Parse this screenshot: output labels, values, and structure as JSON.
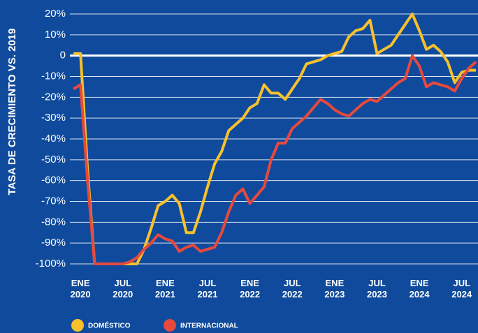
{
  "chart_data": {
    "type": "line",
    "y_label": "TASA DE CRECIMIENTO VS. 2019",
    "x": [
      -1,
      0,
      1,
      2,
      3,
      4,
      5,
      6,
      7,
      8,
      9,
      10,
      11,
      12,
      13,
      14,
      15,
      16,
      17,
      18,
      19,
      20,
      21,
      22,
      23,
      24,
      25,
      26,
      27,
      28,
      29,
      30,
      31,
      32,
      33,
      34,
      35,
      36,
      37,
      38,
      39,
      40,
      41,
      42,
      43,
      44,
      45,
      46,
      47,
      48,
      49,
      50,
      51,
      52,
      53,
      54,
      55,
      56
    ],
    "series": [
      {
        "name": "DOMÉSTICO",
        "color": "#f7c12b",
        "values": [
          1,
          1,
          -55,
          -100,
          -100,
          -100,
          -100,
          -100,
          -100,
          -100,
          -93,
          -83,
          -72,
          -70,
          -67,
          -71,
          -85,
          -85,
          -75,
          -63,
          -52,
          -46,
          -36,
          -33,
          -30,
          -25,
          -23,
          -14,
          -18,
          -18,
          -21,
          -16,
          -11,
          -4,
          -3,
          -2,
          0,
          1,
          2,
          9,
          12,
          13,
          17,
          1,
          3,
          5,
          10,
          15,
          20,
          12,
          3,
          5,
          2,
          -3,
          -13,
          -8,
          -7,
          -7
        ]
      },
      {
        "name": "INTERNACIONAL",
        "color": "#e6493d",
        "values": [
          -16,
          -14,
          -60,
          -100,
          -100,
          -100,
          -100,
          -100,
          -99,
          -97,
          -93,
          -90,
          -86,
          -88,
          -89,
          -94,
          -92,
          -91,
          -94,
          -93,
          -92,
          -85,
          -75,
          -67,
          -64,
          -71,
          -67,
          -63,
          -50,
          -42,
          -42,
          -35,
          -32,
          -29,
          -25,
          -21,
          -23,
          -26,
          -28,
          -29,
          -26,
          -23,
          -21,
          -22,
          -19,
          -16,
          -13,
          -11,
          0,
          -5,
          -15,
          -13,
          -14,
          -15,
          -17,
          -11,
          -6,
          -3
        ]
      }
    ],
    "xlim": [
      -1.5,
      56.3
    ],
    "xticks": [
      {
        "value": 0,
        "label": "ENE 2020"
      },
      {
        "value": 6,
        "label": "JUL 2020"
      },
      {
        "value": 12,
        "label": "ENE 2021"
      },
      {
        "value": 18,
        "label": "JUL 2021"
      },
      {
        "value": 24,
        "label": "ENE 2022"
      },
      {
        "value": 30,
        "label": "JUL 2022"
      },
      {
        "value": 36,
        "label": "ENE 2023"
      },
      {
        "value": 42,
        "label": "JUL 2023"
      },
      {
        "value": 48,
        "label": "ENE 2024"
      },
      {
        "value": 54,
        "label": "JUL 2024"
      }
    ],
    "ylim": [
      -100,
      20
    ],
    "yticks": [
      {
        "value": 20,
        "label": "20%"
      },
      {
        "value": 10,
        "label": "10%"
      },
      0,
      {
        "value": -10,
        "label": "-10%"
      },
      {
        "value": -20,
        "label": "-20%"
      },
      {
        "value": -30,
        "label": "-30%"
      },
      {
        "value": -40,
        "label": "-40%"
      },
      {
        "value": -50,
        "label": "-50%"
      },
      {
        "value": -60,
        "label": "-60%"
      },
      {
        "value": -70,
        "label": "-70%"
      },
      {
        "value": -80,
        "label": "-80%"
      },
      {
        "value": -90,
        "label": "-90%"
      },
      {
        "value": -100,
        "label": "-100%"
      }
    ],
    "grid": true,
    "zero_line": true,
    "legend": "bottom-left"
  }
}
